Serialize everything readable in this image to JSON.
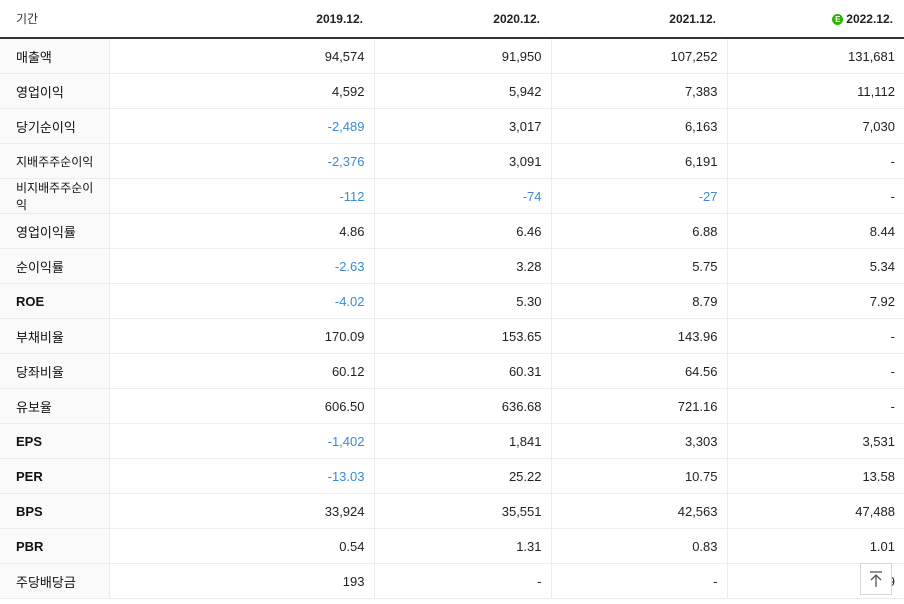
{
  "header": {
    "label": "기간",
    "periods": [
      "2019.12.",
      "2020.12.",
      "2021.12.",
      "2022.12."
    ],
    "estimate_badge": "E",
    "estimate_color": "#2db400"
  },
  "rows": [
    {
      "label": "매출액",
      "values": [
        "94,574",
        "91,950",
        "107,252",
        "131,681"
      ]
    },
    {
      "label": "영업이익",
      "values": [
        "4,592",
        "5,942",
        "7,383",
        "11,112"
      ]
    },
    {
      "label": "당기순이익",
      "values": [
        "-2,489",
        "3,017",
        "6,163",
        "7,030"
      ]
    },
    {
      "label": "지배주주순이익",
      "values": [
        "-2,376",
        "3,091",
        "6,191",
        "-"
      ]
    },
    {
      "label": "비지배주주순이익",
      "values": [
        "-112",
        "-74",
        "-27",
        "-"
      ]
    },
    {
      "label": "영업이익률",
      "values": [
        "4.86",
        "6.46",
        "6.88",
        "8.44"
      ]
    },
    {
      "label": "순이익률",
      "values": [
        "-2.63",
        "3.28",
        "5.75",
        "5.34"
      ]
    },
    {
      "label": "ROE",
      "values": [
        "-4.02",
        "5.30",
        "8.79",
        "7.92"
      ]
    },
    {
      "label": "부채비율",
      "values": [
        "170.09",
        "153.65",
        "143.96",
        "-"
      ]
    },
    {
      "label": "당좌비율",
      "values": [
        "60.12",
        "60.31",
        "64.56",
        "-"
      ]
    },
    {
      "label": "유보율",
      "values": [
        "606.50",
        "636.68",
        "721.16",
        "-"
      ]
    },
    {
      "label": "EPS",
      "values": [
        "-1,402",
        "1,841",
        "3,303",
        "3,531"
      ]
    },
    {
      "label": "PER",
      "values": [
        "-13.03",
        "25.22",
        "10.75",
        "13.58"
      ]
    },
    {
      "label": "BPS",
      "values": [
        "33,924",
        "35,551",
        "42,563",
        "47,488"
      ]
    },
    {
      "label": "PBR",
      "values": [
        "0.54",
        "1.31",
        "0.83",
        "1.01"
      ]
    },
    {
      "label": "주당배당금",
      "values": [
        "193",
        "-",
        "-",
        "9"
      ]
    }
  ],
  "colors": {
    "negative": "#3b8ad6"
  },
  "scroll_top_icon": "arrow-up-to-top-icon"
}
